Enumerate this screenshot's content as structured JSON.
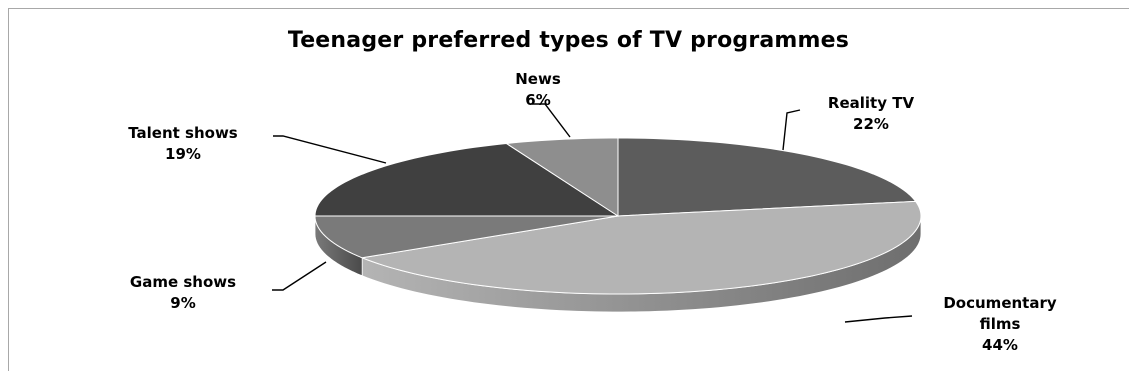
{
  "chart_data": {
    "type": "pie",
    "title": "Teenager preferred types of TV programmes",
    "slices": [
      {
        "label_lines": [
          "Reality TV"
        ],
        "value": 22,
        "value_label": "22%"
      },
      {
        "label_lines": [
          "Documentary",
          "films"
        ],
        "value": 44,
        "value_label": "44%"
      },
      {
        "label_lines": [
          "Game shows"
        ],
        "value": 9,
        "value_label": "9%"
      },
      {
        "label_lines": [
          "Talent shows"
        ],
        "value": 19,
        "value_label": "19%"
      },
      {
        "label_lines": [
          "News"
        ],
        "value": 6,
        "value_label": "6%"
      }
    ],
    "colors": [
      "#5c5c5c",
      "#b4b4b4",
      "#7a7a7a",
      "#404040",
      "#8e8e8e"
    ],
    "side_colors": [
      "#3a3a3a",
      "#6e6e6e",
      "#4a4a4a",
      "#2a2a2a",
      "#5a5a5a"
    ],
    "three_d": true,
    "legend": "none"
  }
}
